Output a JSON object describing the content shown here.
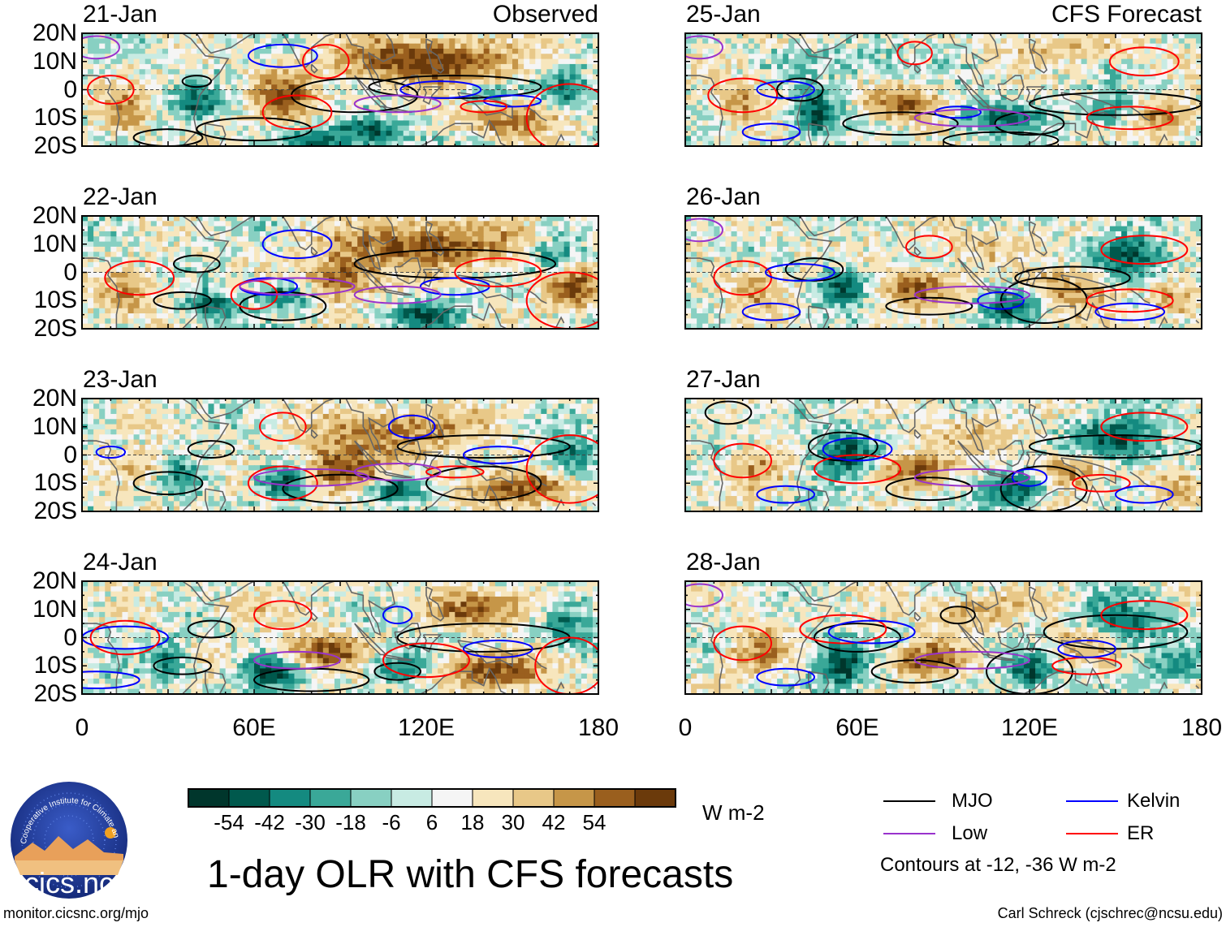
{
  "chart_data": {
    "type": "heatmap",
    "title": "1-day OLR with CFS forecasts",
    "units": "W m-2",
    "observed_label": "Observed",
    "forecast_label": "CFS Forecast",
    "observed_dates": [
      "21-Jan",
      "22-Jan",
      "23-Jan",
      "24-Jan"
    ],
    "forecast_dates": [
      "25-Jan",
      "26-Jan",
      "27-Jan",
      "28-Jan"
    ],
    "lat_ticks": [
      "20N",
      "10N",
      "0",
      "10S",
      "20S"
    ],
    "lon_ticks": [
      "0",
      "60E",
      "120E",
      "180"
    ],
    "lat_range": [
      -20,
      20
    ],
    "lon_range": [
      0,
      180
    ],
    "colorbar": {
      "ticks": [
        "-54",
        "-42",
        "-30",
        "-18",
        "-6",
        "6",
        "18",
        "30",
        "42",
        "54"
      ],
      "colors": [
        "#00362c",
        "#00594d",
        "#148a80",
        "#3aa898",
        "#88d0c2",
        "#c8ebe3",
        "#f5f5f5",
        "#f7e6bd",
        "#e8c888",
        "#c69648",
        "#9a5f1e",
        "#6b3a0b"
      ]
    },
    "contour_legend": [
      {
        "name": "MJO",
        "color": "#000000"
      },
      {
        "name": "Kelvin",
        "color": "#0000ff"
      },
      {
        "name": "Low",
        "color": "#9932cc"
      },
      {
        "name": "ER",
        "color": "#ff0000"
      }
    ],
    "contour_note": "Contours at -12, -36 W m-2"
  },
  "footer": {
    "left_url": "monitor.cicsnc.org/mjo",
    "credit": "Carl Schreck (cjschrec@ncsu.edu)"
  },
  "logo": {
    "text": "cics.nc",
    "ring_text": "Cooperative Institute for Climate and Satellites"
  }
}
